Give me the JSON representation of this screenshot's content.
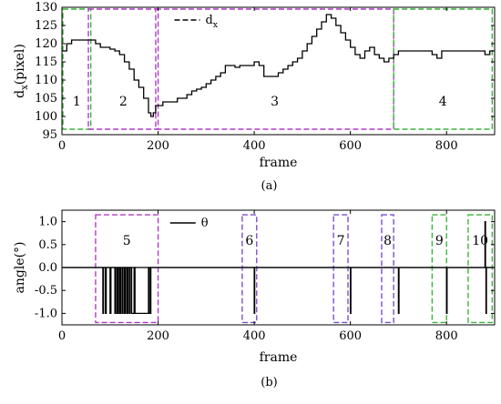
{
  "chart_data": [
    {
      "type": "line",
      "panel_label": "(a)",
      "xlabel": "frame",
      "ylabel": "d",
      "ylabel_sub": "x",
      "ylabel_unit": "(pixel)",
      "xlim": [
        0,
        900
      ],
      "ylim": [
        95,
        130
      ],
      "xticks": [
        0,
        200,
        400,
        600,
        800
      ],
      "yticks": [
        95,
        100,
        105,
        110,
        115,
        120,
        125,
        130
      ],
      "legend": {
        "label": "d",
        "label_sub": "x",
        "position": "top-center"
      },
      "series": [
        {
          "name": "dx",
          "color": "#000000",
          "x": [
            0,
            10,
            20,
            40,
            60,
            70,
            80,
            90,
            100,
            110,
            120,
            130,
            140,
            150,
            160,
            170,
            180,
            185,
            190,
            195,
            200,
            210,
            220,
            230,
            240,
            250,
            260,
            270,
            280,
            290,
            300,
            310,
            320,
            330,
            340,
            350,
            360,
            370,
            380,
            390,
            400,
            410,
            420,
            430,
            440,
            450,
            460,
            470,
            480,
            490,
            500,
            510,
            520,
            530,
            540,
            550,
            560,
            570,
            580,
            590,
            600,
            610,
            620,
            630,
            640,
            650,
            660,
            670,
            680,
            690,
            700,
            720,
            740,
            760,
            770,
            780,
            790,
            800,
            820,
            840,
            860,
            880,
            890,
            900
          ],
          "y": [
            118,
            120,
            121,
            121,
            121,
            120,
            119,
            119,
            118.5,
            118,
            117,
            115,
            113,
            110,
            108,
            105,
            101,
            100,
            101,
            103,
            103,
            104,
            104,
            104,
            105,
            105,
            106,
            107,
            107.5,
            108,
            109,
            110,
            111,
            112,
            114,
            114,
            113.5,
            114,
            114,
            114,
            115,
            114,
            111,
            111,
            111,
            112,
            113,
            114,
            115,
            116,
            118,
            120,
            122,
            124,
            126,
            128,
            127,
            125,
            123,
            121,
            119,
            117,
            116,
            118,
            119,
            117,
            116,
            115,
            116,
            117,
            118,
            118,
            118,
            118,
            117,
            116,
            118,
            118,
            118,
            118,
            118,
            117,
            118,
            118
          ]
        }
      ],
      "regions": [
        {
          "label": "1",
          "x": [
            2,
            60
          ],
          "y": [
            96.5,
            129.5
          ],
          "color": "#3cb33c"
        },
        {
          "label": "2",
          "x": [
            55,
            200
          ],
          "y": [
            96.5,
            129.5
          ],
          "color": "#b03cc8"
        },
        {
          "label": "3",
          "x": [
            195,
            690
          ],
          "y": [
            96.5,
            129.5
          ],
          "color": "#b03cc8"
        },
        {
          "label": "4",
          "x": [
            690,
            895
          ],
          "y": [
            96.5,
            129.5
          ],
          "color": "#3cb33c"
        }
      ]
    },
    {
      "type": "line",
      "panel_label": "(b)",
      "xlabel": "frame",
      "ylabel": "angle(°)",
      "xlim": [
        0,
        900
      ],
      "ylim": [
        -1.25,
        1.25
      ],
      "xticks": [
        0,
        200,
        400,
        600,
        800
      ],
      "yticks": [
        -1.0,
        -0.5,
        0.0,
        0.5,
        1.0
      ],
      "ytick_labels": [
        "-1.0",
        "-0.5",
        "0.0",
        "0.5",
        "1.0"
      ],
      "legend": {
        "label": "θ",
        "position": "top-center"
      },
      "series": [
        {
          "name": "θ",
          "color": "#000000",
          "x": [
            0,
            85,
            85,
            86,
            86,
            90,
            90,
            92,
            92,
            100,
            100,
            102,
            102,
            110,
            110,
            112,
            112,
            115,
            115,
            117,
            117,
            120,
            120,
            122,
            122,
            125,
            125,
            127,
            127,
            130,
            130,
            132,
            132,
            135,
            135,
            137,
            137,
            140,
            140,
            142,
            142,
            145,
            145,
            150,
            150,
            152,
            152,
            180,
            180,
            182,
            182,
            185,
            185,
            190,
            190,
            400,
            400,
            401,
            401,
            600,
            600,
            601,
            601,
            700,
            700,
            701,
            701,
            800,
            800,
            801,
            801,
            880,
            880,
            881,
            881,
            882,
            882,
            883,
            883,
            900
          ],
          "y": [
            0,
            0,
            -1,
            -1,
            0,
            0,
            -1,
            -1,
            0,
            0,
            -1,
            -1,
            0,
            0,
            -1,
            -1,
            0,
            0,
            -1,
            -1,
            0,
            0,
            -1,
            -1,
            0,
            0,
            -1,
            -1,
            0,
            0,
            -1,
            -1,
            0,
            0,
            -1,
            -1,
            0,
            0,
            -1,
            -1,
            0,
            0,
            -1,
            -1,
            0,
            0,
            -1,
            -1,
            0,
            0,
            -1,
            -1,
            0,
            0,
            0,
            0,
            -1,
            -1,
            0,
            0,
            -1,
            -1,
            0,
            0,
            -1,
            -1,
            0,
            0,
            -1,
            -1,
            0,
            0,
            1,
            1,
            0,
            0,
            -1,
            -1,
            0,
            0
          ]
        }
      ],
      "regions": [
        {
          "label": "5",
          "x": [
            70,
            200
          ],
          "y": [
            -1.2,
            1.15
          ],
          "color": "#b03cc8"
        },
        {
          "label": "6",
          "x": [
            375,
            405
          ],
          "y": [
            -1.2,
            1.15
          ],
          "color": "#7b4fd0"
        },
        {
          "label": "7",
          "x": [
            565,
            595
          ],
          "y": [
            -1.2,
            1.15
          ],
          "color": "#7b4fd0"
        },
        {
          "label": "8",
          "x": [
            665,
            690
          ],
          "y": [
            -1.2,
            1.15
          ],
          "color": "#7b4fd0"
        },
        {
          "label": "9",
          "x": [
            770,
            800
          ],
          "y": [
            -1.2,
            1.15
          ],
          "color": "#3cb33c"
        },
        {
          "label": "10",
          "x": [
            845,
            895
          ],
          "y": [
            -1.2,
            1.15
          ],
          "color": "#3cb33c"
        }
      ]
    }
  ]
}
